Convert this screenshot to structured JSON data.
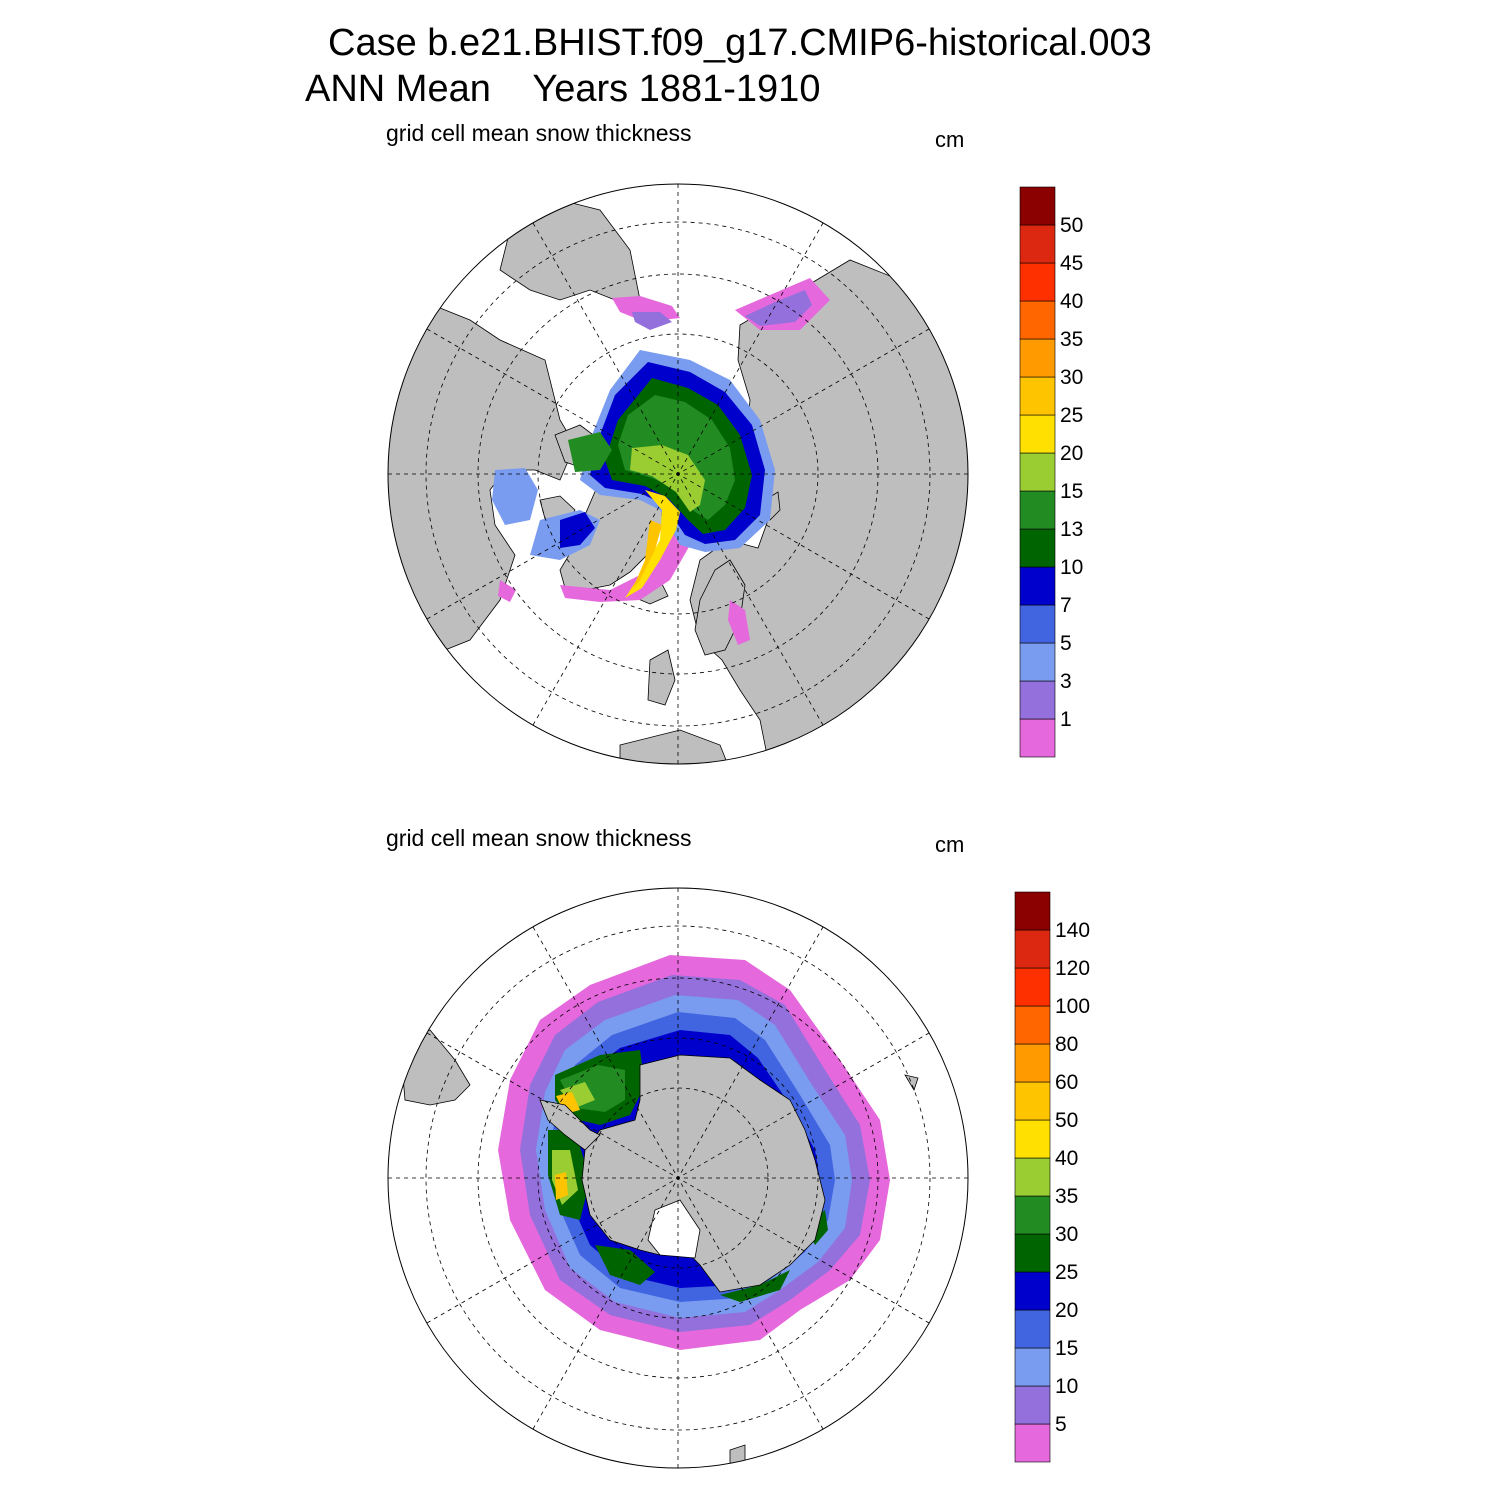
{
  "title": {
    "line1": "Case b.e21.BHIST.f09_g17.CMIP6-historical.003",
    "line2": "ANN Mean    Years 1881-1910"
  },
  "colors": {
    "land": "#bebebe",
    "ocean": "#ffffff",
    "palette": [
      "#e569dc",
      "#9370db",
      "#7a9cf0",
      "#4165e0",
      "#0000cd",
      "#006400",
      "#228b22",
      "#9acd32",
      "#ffe000",
      "#ffc400",
      "#ff9a00",
      "#ff6600",
      "#ff3000",
      "#dc2810",
      "#8b0000"
    ]
  },
  "panels": [
    {
      "id": "north",
      "label": "grid cell mean snow thickness",
      "units": "cm",
      "hemisphere": "northern",
      "projection": "polar stereographic",
      "colorbar_labels": [
        "1",
        "3",
        "5",
        "7",
        "10",
        "13",
        "15",
        "20",
        "25",
        "30",
        "35",
        "40",
        "45",
        "50"
      ]
    },
    {
      "id": "south",
      "label": "grid cell mean snow thickness",
      "units": "cm",
      "hemisphere": "southern",
      "projection": "polar stereographic",
      "colorbar_labels": [
        "5",
        "10",
        "15",
        "20",
        "25",
        "30",
        "35",
        "40",
        "50",
        "60",
        "80",
        "100",
        "120",
        "140"
      ]
    }
  ]
}
